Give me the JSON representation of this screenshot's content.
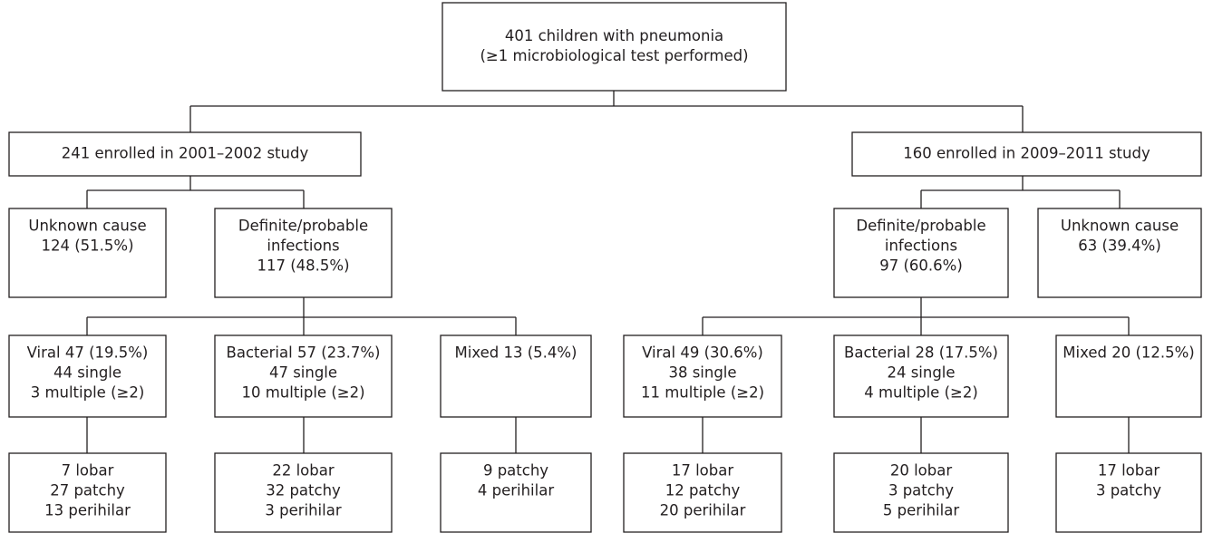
{
  "nodes": [
    {
      "lines": [
        "401 children with pneumonia",
        "(≥1 microbiological test performed)"
      ]
    },
    {
      "lines": [
        "241 enrolled in 2001–2002 study"
      ]
    },
    {
      "lines": [
        "160 enrolled in 2009–2011 study"
      ]
    },
    {
      "lines": [
        "Unknown cause",
        "124 (51.5%)"
      ]
    },
    {
      "lines": [
        "Definite/probable",
        "infections",
        "117 (48.5%)"
      ]
    },
    {
      "lines": [
        "Definite/probable",
        "infections",
        "97 (60.6%)"
      ]
    },
    {
      "lines": [
        "Unknown cause",
        "63 (39.4%)"
      ]
    },
    {
      "lines": [
        "Viral 47 (19.5%)",
        "44 single",
        "3 multiple (≥2)"
      ]
    },
    {
      "lines": [
        "Bacterial 57 (23.7%)",
        "47 single",
        "10 multiple (≥2)"
      ]
    },
    {
      "lines": [
        "Mixed 13 (5.4%)"
      ]
    },
    {
      "lines": [
        "Viral 49 (30.6%)",
        "38 single",
        "11 multiple (≥2)"
      ]
    },
    {
      "lines": [
        "Bacterial 28 (17.5%)",
        "24 single",
        "4 multiple (≥2)"
      ]
    },
    {
      "lines": [
        "Mixed 20 (12.5%)"
      ]
    },
    {
      "lines": [
        "7 lobar",
        "27 patchy",
        "13 perihilar"
      ]
    },
    {
      "lines": [
        "22 lobar",
        "32 patchy",
        "3 perihilar"
      ]
    },
    {
      "lines": [
        "9 patchy",
        "4 perihilar"
      ]
    },
    {
      "lines": [
        "17 lobar",
        "12 patchy",
        "20 perihilar"
      ]
    },
    {
      "lines": [
        "20 lobar",
        "3 patchy",
        "5 perihilar"
      ]
    },
    {
      "lines": [
        "17 lobar",
        "3 patchy"
      ]
    }
  ]
}
